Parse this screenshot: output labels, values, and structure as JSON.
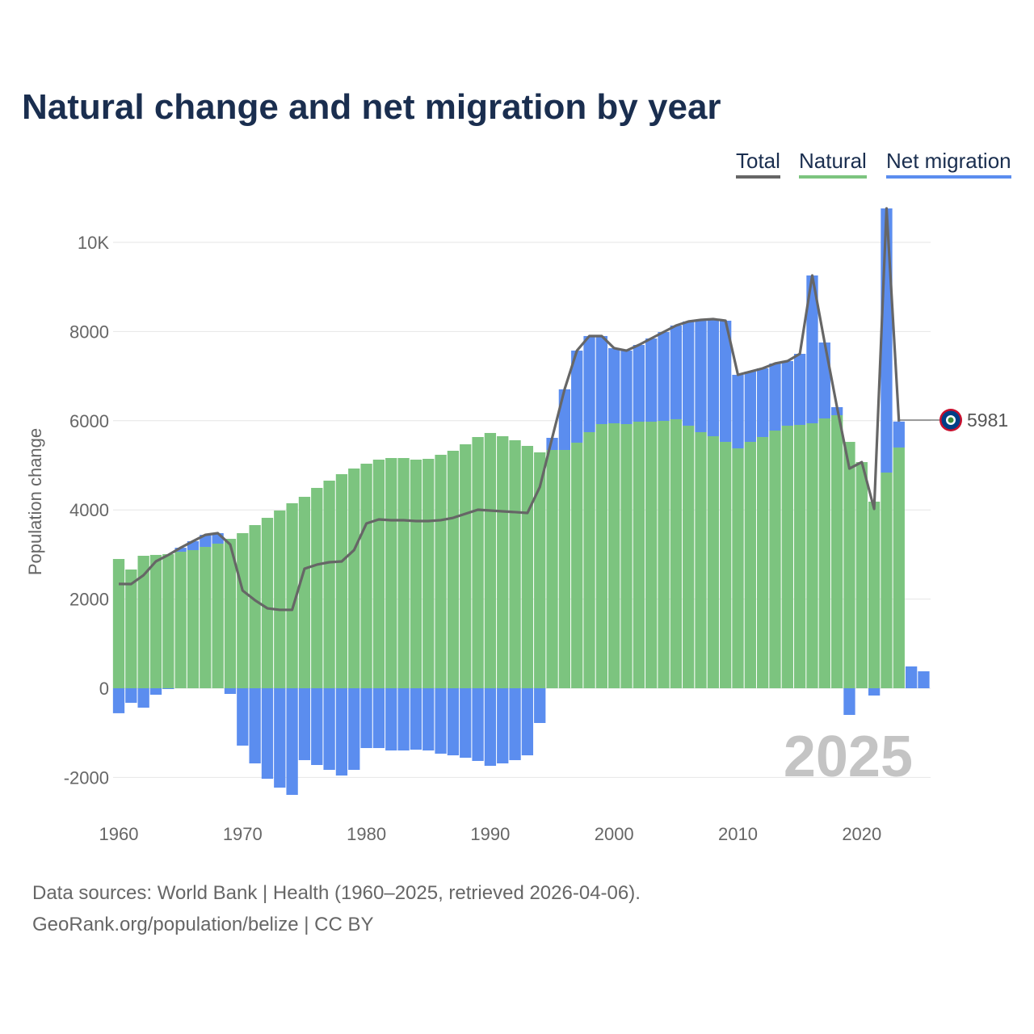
{
  "chart_data": {
    "type": "bar",
    "title": "Natural change and net migration by year",
    "ylabel": "Population change",
    "xlabel": "",
    "ylim": [
      -2500,
      11000
    ],
    "yticks": [
      -2000,
      0,
      2000,
      4000,
      6000,
      8000,
      10000
    ],
    "ytick_labels": [
      "-2000",
      "0",
      "2000",
      "4000",
      "6000",
      "8000",
      "10K"
    ],
    "xticks": [
      1960,
      1970,
      1980,
      1990,
      2000,
      2010,
      2020
    ],
    "grid": true,
    "legend_position": "top-right",
    "legend": [
      "Total",
      "Natural",
      "Net migration"
    ],
    "colors": {
      "total": "#666666",
      "natural": "#7cc47f",
      "migration": "#5b8def"
    },
    "x": [
      1960,
      1961,
      1962,
      1963,
      1964,
      1965,
      1966,
      1967,
      1968,
      1969,
      1970,
      1971,
      1972,
      1973,
      1974,
      1975,
      1976,
      1977,
      1978,
      1979,
      1980,
      1981,
      1982,
      1983,
      1984,
      1985,
      1986,
      1987,
      1988,
      1989,
      1990,
      1991,
      1992,
      1993,
      1994,
      1995,
      1996,
      1997,
      1998,
      1999,
      2000,
      2001,
      2002,
      2003,
      2004,
      2005,
      2006,
      2007,
      2008,
      2009,
      2010,
      2011,
      2012,
      2013,
      2014,
      2015,
      2016,
      2017,
      2018,
      2019,
      2020,
      2021,
      2022,
      2023,
      2024,
      2025
    ],
    "series": [
      {
        "name": "Natural",
        "values": [
          2899,
          2663,
          2971,
          2990,
          3007,
          3061,
          3098,
          3170,
          3243,
          3351,
          3478,
          3659,
          3822,
          3986,
          4149,
          4293,
          4493,
          4656,
          4801,
          4928,
          5036,
          5127,
          5163,
          5163,
          5127,
          5145,
          5236,
          5326,
          5471,
          5634,
          5725,
          5652,
          5562,
          5435,
          5290,
          5344,
          5344,
          5507,
          5743,
          5924,
          5942,
          5924,
          5978,
          5978,
          5996,
          6033,
          5888,
          5743,
          5652,
          5525,
          5380,
          5525,
          5634,
          5779,
          5888,
          5906,
          5942,
          6051,
          6123,
          5525,
          5072,
          4185,
          4837,
          5399,
          0,
          0
        ]
      },
      {
        "name": "Net migration",
        "values": [
          -560,
          -326,
          -435,
          -145,
          -18,
          90,
          200,
          270,
          235,
          -127,
          -1286,
          -1685,
          -2029,
          -2228,
          -2391,
          -1612,
          -1721,
          -1830,
          -1957,
          -1830,
          -1341,
          -1341,
          -1395,
          -1395,
          -1377,
          -1395,
          -1467,
          -1504,
          -1558,
          -1630,
          -1739,
          -1685,
          -1612,
          -1504,
          -779,
          272,
          1359,
          2065,
          2156,
          1975,
          1685,
          1648,
          1721,
          1866,
          1993,
          2101,
          2337,
          2518,
          2627,
          2718,
          1649,
          1576,
          1540,
          1504,
          1449,
          1594,
          3315,
          1703,
          181,
          -598,
          0,
          -163,
          5924,
          582,
          489,
          380
        ]
      },
      {
        "name": "Total",
        "values": [
          2339,
          2337,
          2536,
          2845,
          2989,
          3151,
          3298,
          3440,
          3478,
          3224,
          2192,
          1974,
          1793,
          1758,
          1758,
          2681,
          2772,
          2826,
          2844,
          3098,
          3695,
          3786,
          3768,
          3768,
          3750,
          3750,
          3769,
          3822,
          3913,
          4004,
          3986,
          3967,
          3950,
          3931,
          4511,
          5616,
          6703,
          7572,
          7899,
          7899,
          7627,
          7572,
          7699,
          7844,
          7989,
          8134,
          8225,
          8261,
          8279,
          8243,
          7029,
          7101,
          7174,
          7283,
          7337,
          7500,
          9257,
          7754,
          6304,
          4927,
          5072,
          4022,
          10761,
          5981,
          null,
          null
        ]
      }
    ],
    "end_label": "5981",
    "year_watermark": "2025"
  },
  "footer": {
    "line1": "Data sources: World Bank | Health (1960–2025, retrieved 2026-04-06).",
    "line2": "GeoRank.org/population/belize | CC BY"
  }
}
